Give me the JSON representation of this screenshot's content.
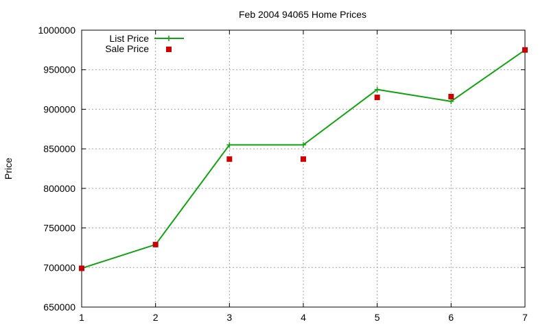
{
  "chart_data": {
    "type": "line",
    "title": "Feb 2004 94065 Home Prices",
    "xlabel": "",
    "ylabel": "Price",
    "x": [
      1,
      2,
      3,
      4,
      5,
      6,
      7
    ],
    "xlim": [
      1,
      7
    ],
    "ylim": [
      650000,
      1000000
    ],
    "x_ticks": [
      "1",
      "2",
      "3",
      "4",
      "5",
      "6",
      "7"
    ],
    "y_ticks": [
      "650000",
      "700000",
      "750000",
      "800000",
      "850000",
      "900000",
      "950000",
      "1000000"
    ],
    "grid": true,
    "legend_position": "top-left",
    "series": [
      {
        "name": "List Price",
        "style": "line-with-cross-markers",
        "color": "#0fa30f",
        "values": [
          699000,
          729000,
          855000,
          855000,
          925000,
          910000,
          975000
        ]
      },
      {
        "name": "Sale Price",
        "style": "square-markers",
        "color": "#cc0000",
        "values": [
          699000,
          729000,
          837000,
          837000,
          915000,
          916000,
          975000
        ]
      }
    ]
  }
}
